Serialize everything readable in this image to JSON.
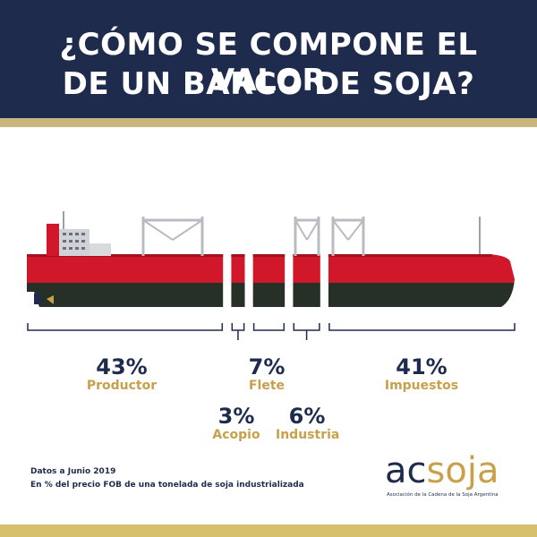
{
  "header": {
    "title_line1": "¿CÓMO SE COMPONE EL VALOR",
    "title_line2": "DE UN BARCO DE SOJA?"
  },
  "chart_data": {
    "type": "bar",
    "categories": [
      "Productor",
      "Acopio",
      "Flete",
      "Industria",
      "Impuestos"
    ],
    "values": [
      43,
      3,
      7,
      6,
      41
    ],
    "value_labels": [
      "43%",
      "3%",
      "7%",
      "6%",
      "41%"
    ],
    "unit": "%"
  },
  "notes": {
    "line1": "Datos a Junio 2019",
    "line2": "En % del precio FOB de una tonelada de soja industrializada"
  },
  "logo": {
    "word_ac": "ac",
    "word_soja": "soja",
    "subtitle": "Asociación de la Cadena de la Soja Argentina"
  },
  "colors": {
    "navy": "#1f2b4d",
    "gold": "#c9a04a",
    "hull_red": "#d1182b",
    "hull_dark": "#263027"
  }
}
